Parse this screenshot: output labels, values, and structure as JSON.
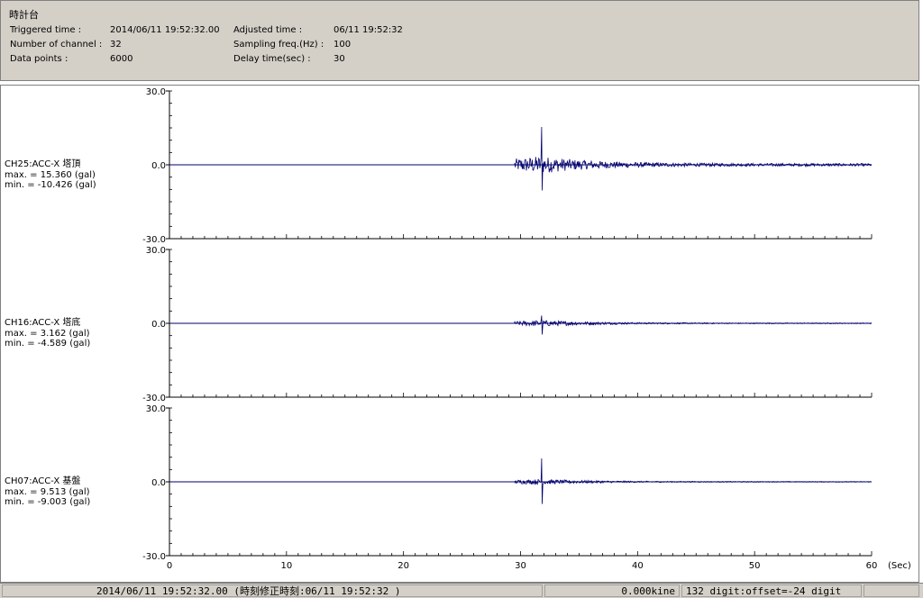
{
  "header": {
    "title": "時計台",
    "fields": [
      {
        "label": "Triggered time :",
        "value": "2014/06/11 19:52:32.00"
      },
      {
        "label": "Number of channel :",
        "value": "32"
      },
      {
        "label": "Data points :",
        "value": "6000"
      },
      {
        "label": "Adjusted time :",
        "value": "06/11 19:52:32"
      },
      {
        "label": "Sampling freq.(Hz) :",
        "value": "100"
      },
      {
        "label": "Delay time(sec) :",
        "value": "30"
      }
    ]
  },
  "chart_data": {
    "type": "line",
    "x_axis": {
      "range": [
        0,
        60
      ],
      "ticks": [
        0,
        10,
        20,
        30,
        40,
        50,
        60
      ],
      "unit": "(Sec)"
    },
    "line_color": "#00006e",
    "channels": [
      {
        "name": "CH25:ACC-X 塔頂",
        "max_text": "max. = 15.360 (gal)",
        "min_text": "min. = -10.426 (gal)",
        "max": 15.36,
        "min": -10.426,
        "y_range": [
          -30.0,
          30.0
        ],
        "y_ticks": [
          "30.0",
          "0.0",
          "-30.0"
        ],
        "onset": 29.5,
        "peak_time": 31.8,
        "noise_amp": 1.0
      },
      {
        "name": "CH16:ACC-X 塔底",
        "max_text": "max. = 3.162 (gal)",
        "min_text": "min. = -4.589 (gal)",
        "max": 3.162,
        "min": -4.589,
        "y_range": [
          -30.0,
          30.0
        ],
        "y_ticks": [
          "30.0",
          "0.0",
          "-30.0"
        ],
        "onset": 29.5,
        "peak_time": 31.8,
        "noise_amp": 0.35
      },
      {
        "name": "CH07:ACC-X 基盤",
        "max_text": "max. = 9.513 (gal)",
        "min_text": "min. = -9.003 (gal)",
        "max": 9.513,
        "min": -9.003,
        "y_range": [
          -30.0,
          30.0
        ],
        "y_ticks": [
          "30.0",
          "0.0",
          "-30.0"
        ],
        "onset": 29.5,
        "peak_time": 31.8,
        "noise_amp": 0.3
      }
    ]
  },
  "status": {
    "time": "2014/06/11 19:52:32.00  (時刻修正時刻:06/11 19:52:32  )",
    "velocity": "0.000kine",
    "digit": "132 digit:offset=-24 digit"
  }
}
